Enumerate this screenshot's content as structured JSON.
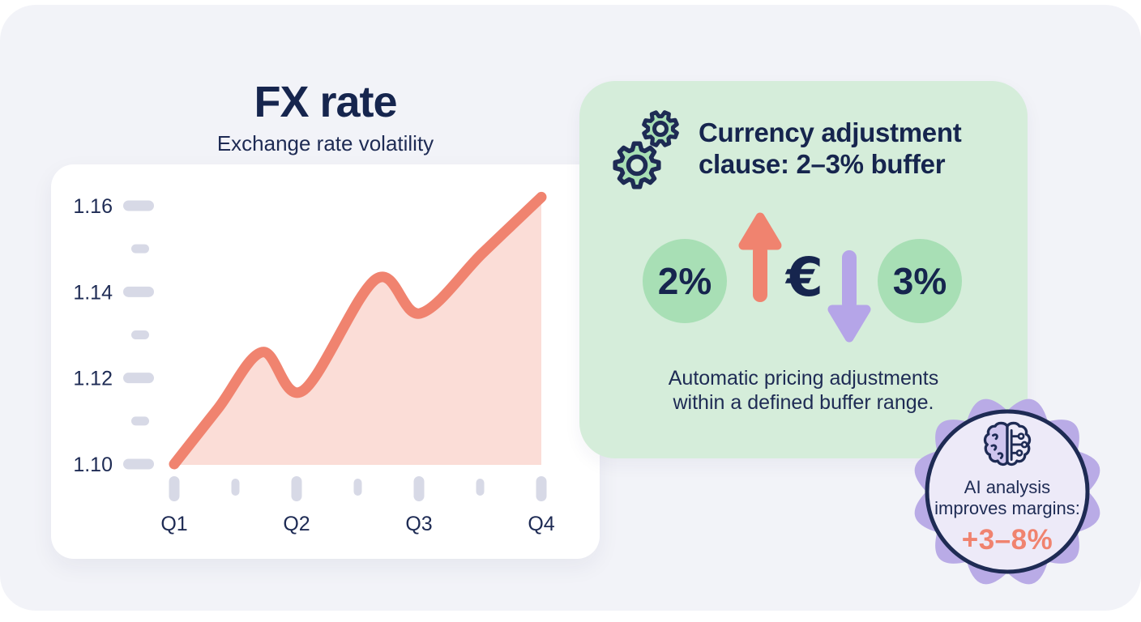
{
  "colors": {
    "canvas_bg": "#f2f3f8",
    "card_bg": "#ffffff",
    "navy_text": "#1e2b54",
    "salmon": "#f0836f",
    "salmon_fill": "#fbddd7",
    "tick_pill": "#d7d9e6",
    "green_card_bg": "#d5edda",
    "green_accent": "#a8dfb5",
    "lavender_arrow": "#b5a5e8",
    "seal_lavender": "#b9abe6",
    "seal_inner": "#edeaf8",
    "brain_left_fill": "#cfc5ee"
  },
  "chart_data": {
    "type": "area",
    "title": "FX rate",
    "subtitle": "Exchange rate volatility",
    "x_categories": [
      "Q1",
      "Q2",
      "Q3",
      "Q4"
    ],
    "y_ticks": [
      1.1,
      1.12,
      1.14,
      1.16
    ],
    "y_tick_labels": [
      "1.10",
      "1.12",
      "1.14",
      "1.16"
    ],
    "ylim": [
      1.1,
      1.162
    ],
    "grid": false,
    "legend": false,
    "x_axis_note": "x is fractional position along the axis, 0 = Q1, 1 = Q4",
    "points": [
      {
        "x": 0.0,
        "v": 1.1
      },
      {
        "x": 0.12,
        "v": 1.113
      },
      {
        "x": 0.24,
        "v": 1.126
      },
      {
        "x": 0.35,
        "v": 1.117
      },
      {
        "x": 0.55,
        "v": 1.143
      },
      {
        "x": 0.67,
        "v": 1.135
      },
      {
        "x": 0.84,
        "v": 1.149
      },
      {
        "x": 1.0,
        "v": 1.162
      }
    ]
  },
  "clause_card": {
    "title": "Currency adjustment clause: 2–3% buffer",
    "title_line1": "Currency adjustment",
    "title_line2": "clause: 2–3% buffer",
    "min_buffer": "2%",
    "max_buffer": "3%",
    "currency_symbol": "€",
    "description_line1": "Automatic pricing adjustments",
    "description_line2": "within a defined buffer range.",
    "icons": [
      "gears-icon",
      "up-arrow-icon",
      "down-arrow-icon",
      "euro-icon"
    ]
  },
  "badge": {
    "icon": "brain-circuit-icon",
    "line1": "AI analysis",
    "line2": "improves margins:",
    "highlight": "+3–8%"
  }
}
